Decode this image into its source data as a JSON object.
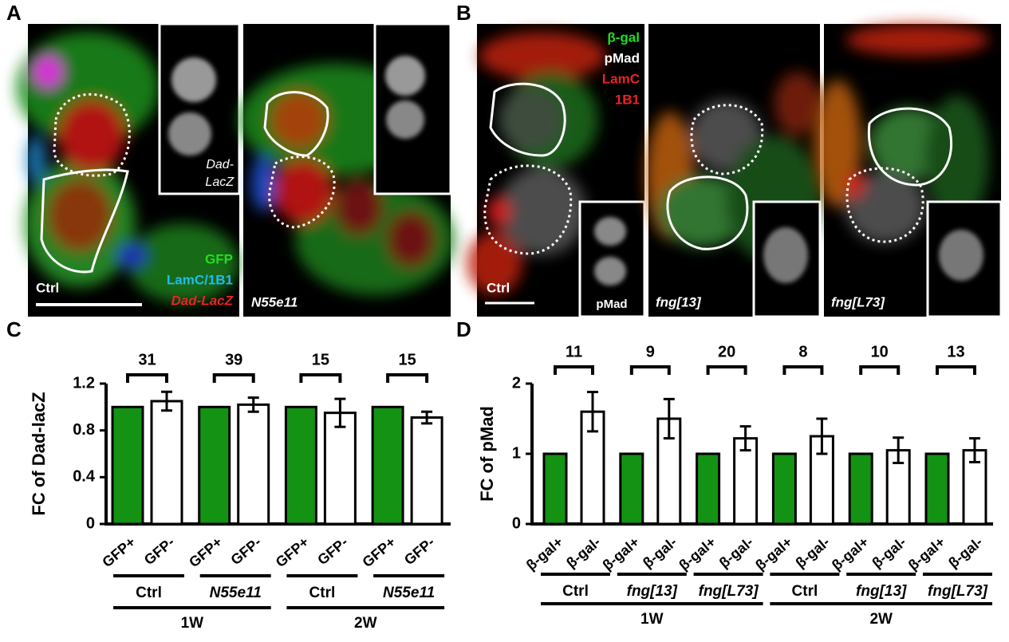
{
  "figure": {
    "panel_labels": [
      "A",
      "B",
      "C",
      "D"
    ],
    "panel_a": {
      "inset_label": [
        "Dad-",
        "LacZ"
      ],
      "legend": [
        "GFP",
        "LamC/1B1",
        "Dad-LacZ"
      ],
      "conditions": [
        "Ctrl",
        "N55e11"
      ]
    },
    "panel_b": {
      "legend": [
        "β-gal",
        "pMad",
        "LamC",
        "1B1"
      ],
      "conditions": [
        "Ctrl",
        "fng[13]",
        "fng[L73]"
      ],
      "inset_label": "pMad"
    }
  },
  "chart_data": [
    {
      "type": "bar",
      "ylabel": "FC of Dad-lacZ",
      "categories": [
        "GFP+",
        "GFP-",
        "GFP+",
        "GFP-",
        "GFP+",
        "GFP-",
        "GFP+",
        "GFP-"
      ],
      "values": [
        1,
        1.05,
        1,
        1.02,
        1,
        0.95,
        1,
        0.91
      ],
      "errors": [
        null,
        0.08,
        null,
        0.06,
        null,
        0.12,
        null,
        0.05
      ],
      "colors": [
        "#139213",
        "#ffffff"
      ],
      "n_labels": [
        31,
        39,
        15,
        15
      ],
      "groups": [
        "Ctrl",
        "N55e11",
        "Ctrl",
        "N55e11"
      ],
      "periods": [
        "1W",
        "2W"
      ],
      "ylim": [
        0,
        1.2
      ],
      "yticks": [
        0,
        0.4,
        0.8,
        1.2
      ]
    },
    {
      "type": "bar",
      "ylabel": "FC of pMad",
      "categories": [
        "β-gal+",
        "β-gal-",
        "β-gal+",
        "β-gal-",
        "β-gal+",
        "β-gal-",
        "β-gal+",
        "β-gal-",
        "β-gal+",
        "β-gal-",
        "β-gal+",
        "β-gal-"
      ],
      "values": [
        1,
        1.6,
        1,
        1.5,
        1,
        1.22,
        1,
        1.25,
        1,
        1.05,
        1,
        1.05
      ],
      "errors": [
        null,
        0.28,
        null,
        0.28,
        null,
        0.17,
        null,
        0.25,
        null,
        0.18,
        null,
        0.17
      ],
      "colors": [
        "#139213",
        "#ffffff"
      ],
      "n_labels": [
        11,
        9,
        20,
        8,
        10,
        13
      ],
      "groups": [
        "Ctrl",
        "fng[13]",
        "fng[L73]",
        "Ctrl",
        "fng[13]",
        "fng[L73]"
      ],
      "periods": [
        "1W",
        "2W"
      ],
      "ylim": [
        0,
        2
      ],
      "yticks": [
        0,
        1,
        2
      ]
    }
  ]
}
